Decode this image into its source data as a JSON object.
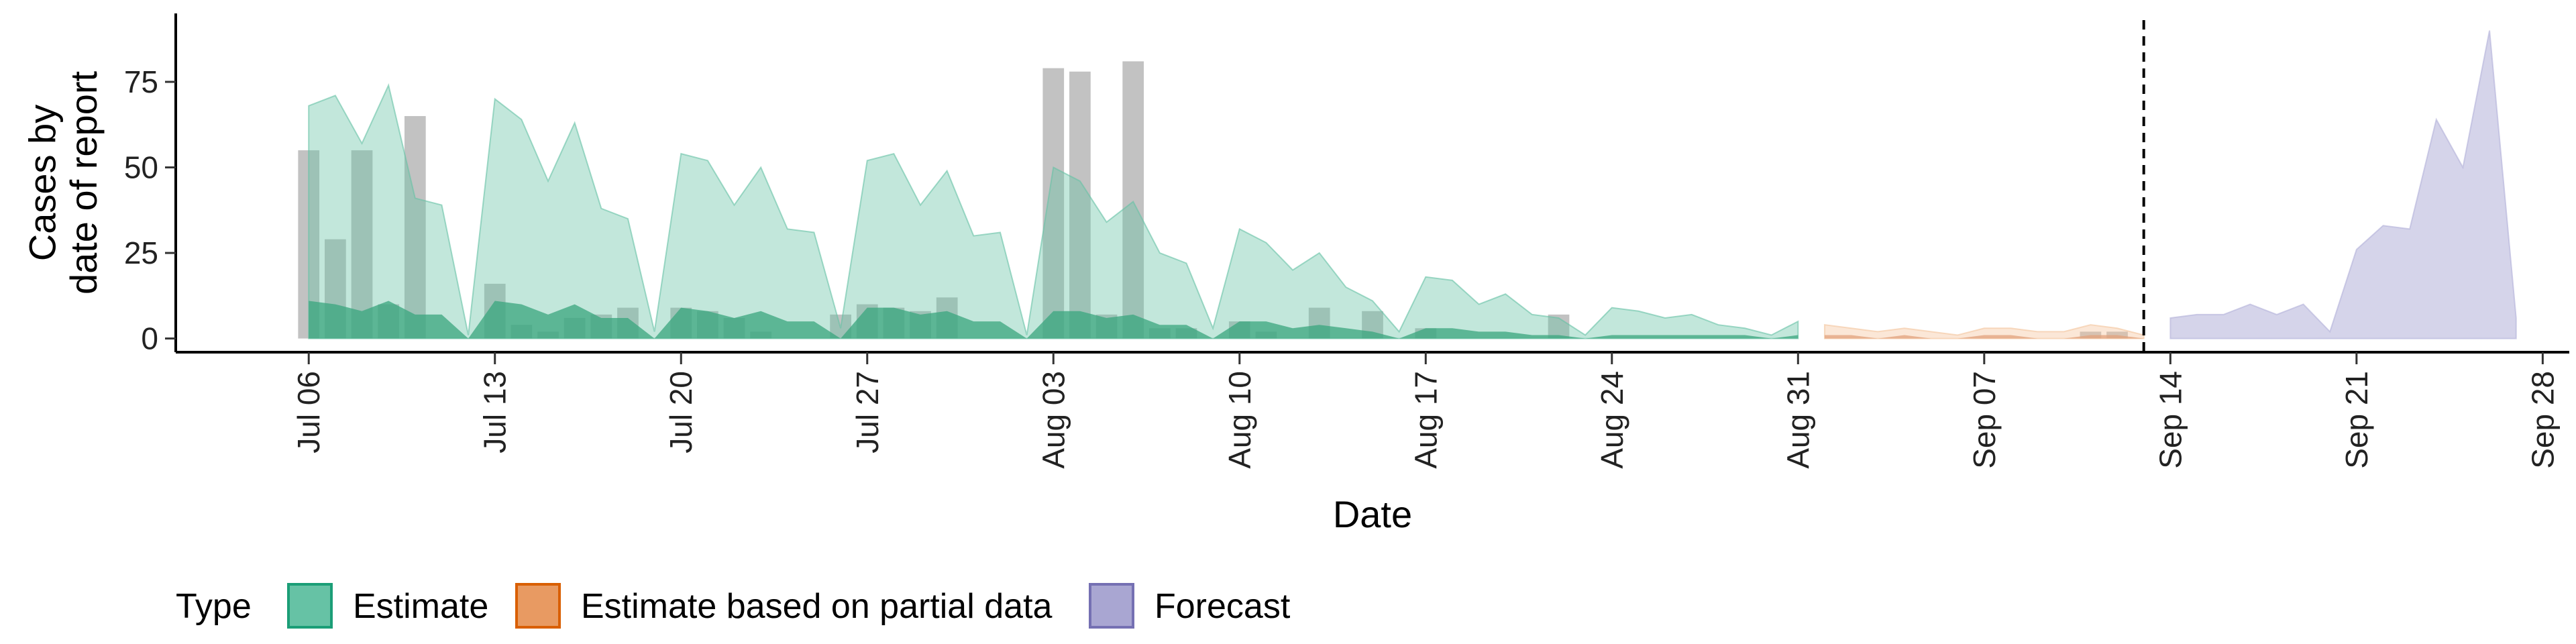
{
  "chart_data": {
    "type": "area",
    "xlabel": "Date",
    "ylabel": "Cases by\ndate of report",
    "x_ticks": [
      "Jul 06",
      "Jul 13",
      "Jul 20",
      "Jul 27",
      "Aug 03",
      "Aug 10",
      "Aug 17",
      "Aug 24",
      "Aug 31",
      "Sep 07",
      "Sep 14",
      "Sep 21",
      "Sep 28"
    ],
    "y_ticks": [
      0,
      25,
      50,
      75
    ],
    "ylim": [
      -4,
      95
    ],
    "xlim": [
      "2020-07-01",
      "2020-09-29"
    ],
    "forecast_start": "2020-09-13",
    "legend": {
      "title": "Type",
      "placement": "bottom",
      "entries": [
        "Estimate",
        "Estimate based on partial data",
        "Forecast"
      ]
    },
    "colors": {
      "estimate_fill": "#66c2a5",
      "estimate_dark": "#3aa67d",
      "partial_fill": "#f4c49c",
      "partial_dark": "#e2a27c",
      "forecast_fill": "#b3b0d9",
      "bars": "#999999",
      "legend_estimate": "#66c2a5",
      "legend_estimate_border": "#1b9e77",
      "legend_partial": "#e89a62",
      "legend_partial_border": "#d95f02",
      "legend_forecast": "#a9a6d2",
      "legend_forecast_border": "#7570b3"
    },
    "series": [
      {
        "name": "Estimate",
        "x": [
          "2020-07-06",
          "2020-07-07",
          "2020-07-08",
          "2020-07-09",
          "2020-07-10",
          "2020-07-11",
          "2020-07-12",
          "2020-07-13",
          "2020-07-14",
          "2020-07-15",
          "2020-07-16",
          "2020-07-17",
          "2020-07-18",
          "2020-07-19",
          "2020-07-20",
          "2020-07-21",
          "2020-07-22",
          "2020-07-23",
          "2020-07-24",
          "2020-07-25",
          "2020-07-26",
          "2020-07-27",
          "2020-07-28",
          "2020-07-29",
          "2020-07-30",
          "2020-07-31",
          "2020-08-01",
          "2020-08-02",
          "2020-08-03",
          "2020-08-04",
          "2020-08-05",
          "2020-08-06",
          "2020-08-07",
          "2020-08-08",
          "2020-08-09",
          "2020-08-10",
          "2020-08-11",
          "2020-08-12",
          "2020-08-13",
          "2020-08-14",
          "2020-08-15",
          "2020-08-16",
          "2020-08-17",
          "2020-08-18",
          "2020-08-19",
          "2020-08-20",
          "2020-08-21",
          "2020-08-22",
          "2020-08-23",
          "2020-08-24",
          "2020-08-25",
          "2020-08-26",
          "2020-08-27",
          "2020-08-28",
          "2020-08-29",
          "2020-08-30",
          "2020-08-31"
        ],
        "upper": [
          68,
          71,
          57,
          74,
          41,
          39,
          1,
          70,
          64,
          46,
          63,
          38,
          35,
          2,
          54,
          52,
          39,
          50,
          32,
          31,
          3,
          52,
          54,
          39,
          49,
          30,
          31,
          1,
          50,
          46,
          34,
          40,
          25,
          22,
          3,
          32,
          28,
          20,
          25,
          15,
          11,
          2,
          18,
          17,
          10,
          13,
          7,
          6,
          1,
          9,
          8,
          6,
          7,
          4,
          3,
          1,
          5
        ],
        "lower": [
          11,
          10,
          8,
          11,
          7,
          7,
          0,
          11,
          10,
          7,
          10,
          6,
          6,
          0,
          9,
          8,
          6,
          8,
          5,
          5,
          0,
          9,
          9,
          7,
          8,
          5,
          5,
          0,
          8,
          8,
          6,
          7,
          4,
          4,
          0,
          5,
          5,
          3,
          4,
          3,
          2,
          0,
          3,
          3,
          2,
          2,
          1,
          1,
          0,
          1,
          1,
          1,
          1,
          1,
          1,
          0,
          1
        ]
      },
      {
        "name": "Estimate based on partial data",
        "x": [
          "2020-09-01",
          "2020-09-02",
          "2020-09-03",
          "2020-09-04",
          "2020-09-05",
          "2020-09-06",
          "2020-09-07",
          "2020-09-08",
          "2020-09-09",
          "2020-09-10",
          "2020-09-11",
          "2020-09-12",
          "2020-09-13"
        ],
        "upper": [
          4,
          3,
          2,
          3,
          2,
          1,
          3,
          3,
          2,
          2,
          4,
          3,
          1
        ],
        "lower": [
          1,
          1,
          0,
          1,
          0,
          0,
          1,
          1,
          0,
          0,
          1,
          1,
          0
        ]
      },
      {
        "name": "Forecast",
        "x": [
          "2020-09-14",
          "2020-09-15",
          "2020-09-16",
          "2020-09-17",
          "2020-09-18",
          "2020-09-19",
          "2020-09-20",
          "2020-09-21",
          "2020-09-22",
          "2020-09-23",
          "2020-09-24",
          "2020-09-25",
          "2020-09-26",
          "2020-09-27"
        ],
        "upper": [
          6,
          7,
          7,
          10,
          7,
          10,
          2,
          26,
          33,
          32,
          64,
          50,
          90,
          6
        ],
        "lower": [
          0,
          0,
          0,
          0,
          0,
          0,
          0,
          0,
          0,
          0,
          0,
          0,
          0,
          0
        ]
      }
    ],
    "bars": {
      "x": [
        "2020-07-06",
        "2020-07-07",
        "2020-07-08",
        "2020-07-09",
        "2020-07-10",
        "2020-07-13",
        "2020-07-14",
        "2020-07-15",
        "2020-07-16",
        "2020-07-17",
        "2020-07-18",
        "2020-07-20",
        "2020-07-21",
        "2020-07-22",
        "2020-07-23",
        "2020-07-26",
        "2020-07-27",
        "2020-07-28",
        "2020-07-29",
        "2020-07-30",
        "2020-08-03",
        "2020-08-04",
        "2020-08-05",
        "2020-08-06",
        "2020-08-07",
        "2020-08-08",
        "2020-08-10",
        "2020-08-11",
        "2020-08-13",
        "2020-08-15",
        "2020-08-17",
        "2020-08-22",
        "2020-09-11",
        "2020-09-12"
      ],
      "values": [
        55,
        29,
        55,
        10,
        65,
        16,
        4,
        2,
        6,
        7,
        9,
        9,
        8,
        6,
        2,
        7,
        10,
        9,
        8,
        12,
        79,
        78,
        7,
        81,
        3,
        3,
        5,
        2,
        9,
        8,
        3,
        7,
        2,
        2
      ]
    }
  }
}
